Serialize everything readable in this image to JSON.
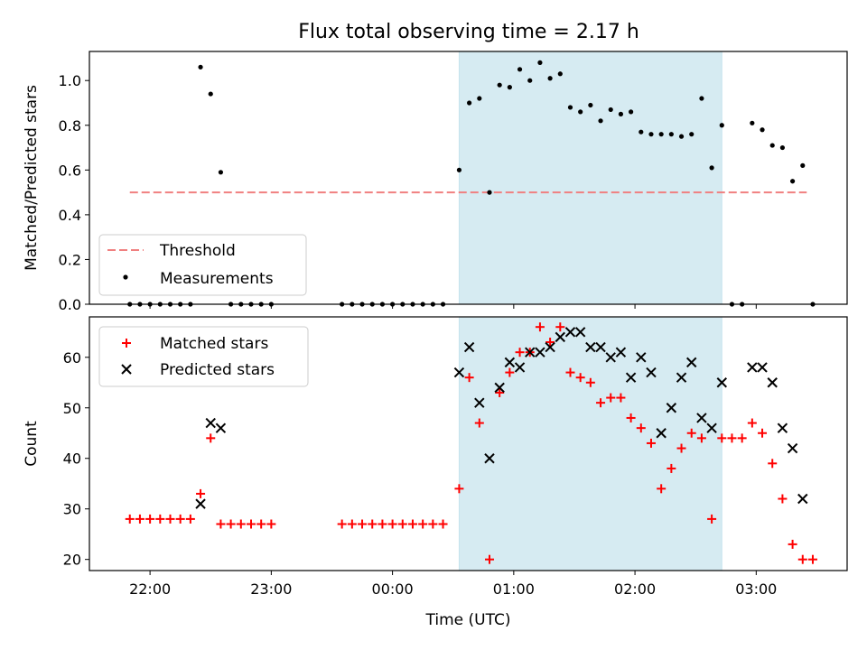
{
  "title": "Flux total observing time = 2.17 h",
  "chart_data": [
    {
      "type": "scatter",
      "ylabel": "Matched/Predicted stars",
      "ylim": [
        0,
        1.13
      ],
      "yticks": [
        "0.0",
        "0.2",
        "0.4",
        "0.6",
        "0.8",
        "1.0"
      ],
      "xlim": [
        "21:30",
        "03:45"
      ],
      "legend": {
        "placement": "lower-left",
        "entries": [
          "Threshold",
          "Measurements"
        ]
      },
      "threshold": {
        "name": "Threshold",
        "value": 0.5,
        "x_start": "21:50",
        "x_end": "03:25",
        "color": "#f08080",
        "style": "dashed"
      },
      "highlight": {
        "x_start": "00:33",
        "x_end": "02:43",
        "color": "#add8e6"
      },
      "series": [
        {
          "name": "Measurements",
          "color": "#000000",
          "points": [
            [
              "21:50",
              0
            ],
            [
              "21:55",
              0
            ],
            [
              "22:00",
              0
            ],
            [
              "22:05",
              0
            ],
            [
              "22:10",
              0
            ],
            [
              "22:15",
              0
            ],
            [
              "22:20",
              0
            ],
            [
              "22:25",
              1.06
            ],
            [
              "22:30",
              0.94
            ],
            [
              "22:35",
              0.59
            ],
            [
              "22:40",
              0
            ],
            [
              "22:45",
              0
            ],
            [
              "22:50",
              0
            ],
            [
              "22:55",
              0
            ],
            [
              "23:00",
              0
            ],
            [
              "23:35",
              0
            ],
            [
              "23:40",
              0
            ],
            [
              "23:45",
              0
            ],
            [
              "23:50",
              0
            ],
            [
              "23:55",
              0
            ],
            [
              "00:00",
              0
            ],
            [
              "00:05",
              0
            ],
            [
              "00:10",
              0
            ],
            [
              "00:15",
              0
            ],
            [
              "00:20",
              0
            ],
            [
              "00:25",
              0
            ],
            [
              "00:33",
              0.6
            ],
            [
              "00:38",
              0.9
            ],
            [
              "00:43",
              0.92
            ],
            [
              "00:48",
              0.5
            ],
            [
              "00:53",
              0.98
            ],
            [
              "00:58",
              0.97
            ],
            [
              "01:03",
              1.05
            ],
            [
              "01:08",
              1.0
            ],
            [
              "01:13",
              1.08
            ],
            [
              "01:18",
              1.01
            ],
            [
              "01:23",
              1.03
            ],
            [
              "01:28",
              0.88
            ],
            [
              "01:33",
              0.86
            ],
            [
              "01:38",
              0.89
            ],
            [
              "01:43",
              0.82
            ],
            [
              "01:48",
              0.87
            ],
            [
              "01:53",
              0.85
            ],
            [
              "01:58",
              0.86
            ],
            [
              "02:03",
              0.77
            ],
            [
              "02:08",
              0.76
            ],
            [
              "02:13",
              0.76
            ],
            [
              "02:18",
              0.76
            ],
            [
              "02:23",
              0.75
            ],
            [
              "02:28",
              0.76
            ],
            [
              "02:33",
              0.92
            ],
            [
              "02:38",
              0.61
            ],
            [
              "02:43",
              0.8
            ],
            [
              "02:48",
              0
            ],
            [
              "02:53",
              0
            ],
            [
              "02:58",
              0.81
            ],
            [
              "03:03",
              0.78
            ],
            [
              "03:08",
              0.71
            ],
            [
              "03:13",
              0.7
            ],
            [
              "03:18",
              0.55
            ],
            [
              "03:23",
              0.62
            ],
            [
              "03:28",
              0
            ]
          ]
        }
      ]
    },
    {
      "type": "scatter",
      "ylabel": "Count",
      "xlabel": "Time (UTC)",
      "ylim": [
        17.8,
        68
      ],
      "yticks": [
        "20",
        "30",
        "40",
        "50",
        "60"
      ],
      "xlim": [
        "21:30",
        "03:45"
      ],
      "xticks": [
        "22:00",
        "23:00",
        "00:00",
        "01:00",
        "02:00",
        "03:00"
      ],
      "legend": {
        "placement": "upper-left",
        "entries": [
          "Matched stars",
          "Predicted stars"
        ]
      },
      "highlight": {
        "x_start": "00:33",
        "x_end": "02:43",
        "color": "#add8e6"
      },
      "series": [
        {
          "name": "Matched stars",
          "marker": "+",
          "color": "#ff0000",
          "points": [
            [
              "21:50",
              28
            ],
            [
              "21:55",
              28
            ],
            [
              "22:00",
              28
            ],
            [
              "22:05",
              28
            ],
            [
              "22:10",
              28
            ],
            [
              "22:15",
              28
            ],
            [
              "22:20",
              28
            ],
            [
              "22:25",
              33
            ],
            [
              "22:30",
              44
            ],
            [
              "22:35",
              27
            ],
            [
              "22:40",
              27
            ],
            [
              "22:45",
              27
            ],
            [
              "22:50",
              27
            ],
            [
              "22:55",
              27
            ],
            [
              "23:00",
              27
            ],
            [
              "23:35",
              27
            ],
            [
              "23:40",
              27
            ],
            [
              "23:45",
              27
            ],
            [
              "23:50",
              27
            ],
            [
              "23:55",
              27
            ],
            [
              "00:00",
              27
            ],
            [
              "00:05",
              27
            ],
            [
              "00:10",
              27
            ],
            [
              "00:15",
              27
            ],
            [
              "00:20",
              27
            ],
            [
              "00:25",
              27
            ],
            [
              "00:33",
              34
            ],
            [
              "00:38",
              56
            ],
            [
              "00:43",
              47
            ],
            [
              "00:48",
              20
            ],
            [
              "00:53",
              53
            ],
            [
              "00:58",
              57
            ],
            [
              "01:03",
              61
            ],
            [
              "01:08",
              61
            ],
            [
              "01:13",
              66
            ],
            [
              "01:18",
              63
            ],
            [
              "01:23",
              66
            ],
            [
              "01:28",
              57
            ],
            [
              "01:33",
              56
            ],
            [
              "01:38",
              55
            ],
            [
              "01:43",
              51
            ],
            [
              "01:48",
              52
            ],
            [
              "01:53",
              52
            ],
            [
              "01:58",
              48
            ],
            [
              "02:03",
              46
            ],
            [
              "02:08",
              43
            ],
            [
              "02:13",
              34
            ],
            [
              "02:18",
              38
            ],
            [
              "02:23",
              42
            ],
            [
              "02:28",
              45
            ],
            [
              "02:33",
              44
            ],
            [
              "02:38",
              28
            ],
            [
              "02:43",
              44
            ],
            [
              "02:48",
              44
            ],
            [
              "02:53",
              44
            ],
            [
              "02:58",
              47
            ],
            [
              "03:03",
              45
            ],
            [
              "03:08",
              39
            ],
            [
              "03:13",
              32
            ],
            [
              "03:18",
              23
            ],
            [
              "03:23",
              20
            ],
            [
              "03:28",
              20
            ]
          ]
        },
        {
          "name": "Predicted stars",
          "marker": "x",
          "color": "#000000",
          "points": [
            [
              "22:25",
              31
            ],
            [
              "22:30",
              47
            ],
            [
              "22:35",
              46
            ],
            [
              "00:33",
              57
            ],
            [
              "00:38",
              62
            ],
            [
              "00:43",
              51
            ],
            [
              "00:48",
              40
            ],
            [
              "00:53",
              54
            ],
            [
              "00:58",
              59
            ],
            [
              "01:03",
              58
            ],
            [
              "01:08",
              61
            ],
            [
              "01:13",
              61
            ],
            [
              "01:18",
              62
            ],
            [
              "01:23",
              64
            ],
            [
              "01:28",
              65
            ],
            [
              "01:33",
              65
            ],
            [
              "01:38",
              62
            ],
            [
              "01:43",
              62
            ],
            [
              "01:48",
              60
            ],
            [
              "01:53",
              61
            ],
            [
              "01:58",
              56
            ],
            [
              "02:03",
              60
            ],
            [
              "02:08",
              57
            ],
            [
              "02:13",
              45
            ],
            [
              "02:18",
              50
            ],
            [
              "02:23",
              56
            ],
            [
              "02:28",
              59
            ],
            [
              "02:33",
              48
            ],
            [
              "02:38",
              46
            ],
            [
              "02:43",
              55
            ],
            [
              "02:58",
              58
            ],
            [
              "03:03",
              58
            ],
            [
              "03:08",
              55
            ],
            [
              "03:13",
              46
            ],
            [
              "03:18",
              42
            ],
            [
              "03:23",
              32
            ]
          ]
        }
      ]
    }
  ]
}
